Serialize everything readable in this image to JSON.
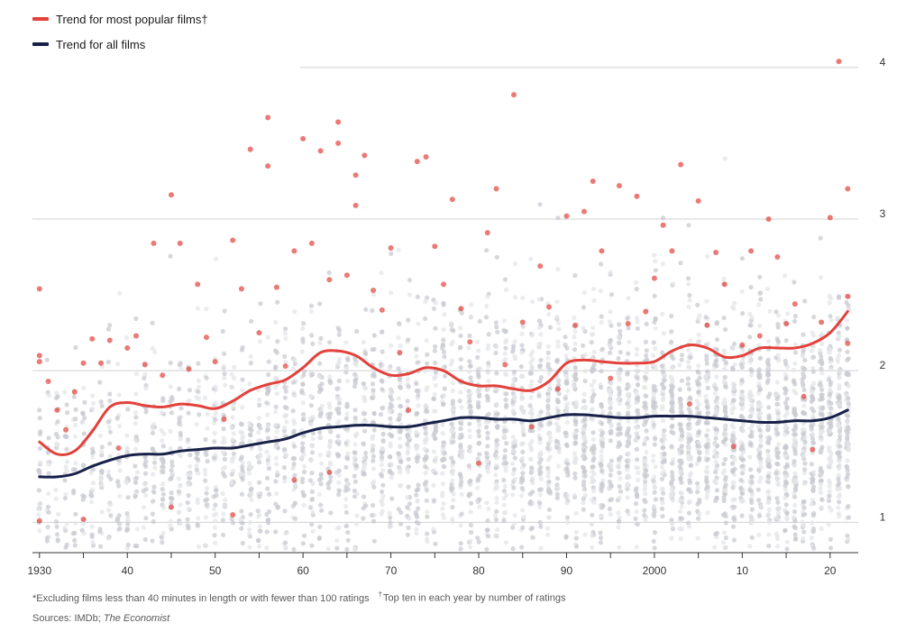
{
  "legend": {
    "popular": {
      "label": "Trend for most popular films†",
      "color": "#e3413b"
    },
    "all": {
      "label": "Trend for all films",
      "color": "#172048"
    }
  },
  "footnotes": {
    "excluding": "*Excluding films less than 40 minutes in length or with fewer than 100 ratings",
    "dagger_mark": "†",
    "top_ten": "Top ten in each year by number of ratings"
  },
  "sources": {
    "prefix": "Sources: IMDb; ",
    "source_italic": "The Economist"
  },
  "chart_data": {
    "type": "scatter",
    "title": "",
    "xlabel": "",
    "ylabel": "",
    "xlim": [
      1929.2,
      2023.2
    ],
    "ylim": [
      0.8,
      4.1
    ],
    "grid": true,
    "y_ticks": [
      1,
      2,
      3,
      4
    ],
    "y_tick_labels": [
      "1",
      "2",
      "3",
      "4"
    ],
    "x_ticks": [
      1930,
      1940,
      1950,
      1960,
      1970,
      1980,
      1990,
      2000,
      2010,
      2020
    ],
    "x_tick_labels": [
      "1930",
      "40",
      "50",
      "60",
      "70",
      "80",
      "90",
      "2000",
      "10",
      "20"
    ],
    "series": [
      {
        "name": "Trend for most popular films†",
        "color": "#e3413b",
        "x": [
          1930,
          1932,
          1934,
          1936,
          1938,
          1940,
          1942,
          1944,
          1946,
          1948,
          1950,
          1952,
          1954,
          1956,
          1958,
          1960,
          1962,
          1964,
          1966,
          1968,
          1970,
          1972,
          1974,
          1976,
          1978,
          1980,
          1982,
          1984,
          1986,
          1988,
          1990,
          1992,
          1994,
          1996,
          1998,
          2000,
          2002,
          2004,
          2006,
          2008,
          2010,
          2012,
          2014,
          2016,
          2018,
          2020,
          2022
        ],
        "y": [
          1.53,
          1.45,
          1.47,
          1.6,
          1.76,
          1.79,
          1.77,
          1.76,
          1.78,
          1.77,
          1.75,
          1.8,
          1.87,
          1.91,
          1.94,
          2.02,
          2.12,
          2.13,
          2.1,
          2.02,
          1.97,
          1.98,
          2.02,
          2.0,
          1.93,
          1.9,
          1.9,
          1.88,
          1.87,
          1.93,
          2.05,
          2.07,
          2.06,
          2.05,
          2.05,
          2.06,
          2.13,
          2.17,
          2.15,
          2.09,
          2.1,
          2.15,
          2.15,
          2.15,
          2.18,
          2.25,
          2.39
        ]
      },
      {
        "name": "Trend for all films",
        "color": "#172048",
        "x": [
          1930,
          1932,
          1934,
          1936,
          1938,
          1940,
          1942,
          1944,
          1946,
          1948,
          1950,
          1952,
          1954,
          1956,
          1958,
          1960,
          1962,
          1964,
          1966,
          1968,
          1970,
          1972,
          1974,
          1976,
          1978,
          1980,
          1982,
          1984,
          1986,
          1988,
          1990,
          1992,
          1994,
          1996,
          1998,
          2000,
          2002,
          2004,
          2006,
          2008,
          2010,
          2012,
          2014,
          2016,
          2018,
          2020,
          2022
        ],
        "y": [
          1.3,
          1.3,
          1.32,
          1.37,
          1.41,
          1.44,
          1.45,
          1.45,
          1.47,
          1.48,
          1.49,
          1.49,
          1.51,
          1.53,
          1.55,
          1.59,
          1.62,
          1.63,
          1.64,
          1.64,
          1.63,
          1.63,
          1.65,
          1.67,
          1.69,
          1.69,
          1.68,
          1.68,
          1.67,
          1.69,
          1.71,
          1.71,
          1.7,
          1.69,
          1.69,
          1.7,
          1.7,
          1.7,
          1.69,
          1.68,
          1.67,
          1.66,
          1.66,
          1.67,
          1.67,
          1.69,
          1.74
        ]
      }
    ],
    "popular_points": [
      [
        1930,
        2.54
      ],
      [
        1930,
        2.1
      ],
      [
        1930,
        2.06
      ],
      [
        1930,
        1.01
      ],
      [
        1931,
        1.93
      ],
      [
        1932,
        1.74
      ],
      [
        1933,
        1.61
      ],
      [
        1934,
        1.86
      ],
      [
        1935,
        2.05
      ],
      [
        1935,
        1.02
      ],
      [
        1936,
        2.21
      ],
      [
        1937,
        2.05
      ],
      [
        1938,
        2.2
      ],
      [
        1939,
        1.49
      ],
      [
        1940,
        2.15
      ],
      [
        1941,
        2.23
      ],
      [
        1942,
        2.04
      ],
      [
        1943,
        2.84
      ],
      [
        1944,
        1.97
      ],
      [
        1945,
        3.16
      ],
      [
        1945,
        1.1
      ],
      [
        1946,
        2.84
      ],
      [
        1947,
        2.01
      ],
      [
        1948,
        2.57
      ],
      [
        1949,
        2.22
      ],
      [
        1950,
        2.06
      ],
      [
        1951,
        1.68
      ],
      [
        1952,
        2.86
      ],
      [
        1952,
        1.05
      ],
      [
        1953,
        2.54
      ],
      [
        1954,
        3.46
      ],
      [
        1955,
        2.25
      ],
      [
        1956,
        3.67
      ],
      [
        1956,
        3.35
      ],
      [
        1957,
        2.55
      ],
      [
        1958,
        2.03
      ],
      [
        1959,
        2.79
      ],
      [
        1959,
        1.28
      ],
      [
        1960,
        3.53
      ],
      [
        1961,
        2.84
      ],
      [
        1962,
        3.45
      ],
      [
        1963,
        2.6
      ],
      [
        1963,
        1.33
      ],
      [
        1964,
        3.64
      ],
      [
        1964,
        3.5
      ],
      [
        1965,
        2.63
      ],
      [
        1966,
        3.29
      ],
      [
        1966,
        3.09
      ],
      [
        1967,
        3.42
      ],
      [
        1968,
        2.53
      ],
      [
        1969,
        2.4
      ],
      [
        1970,
        2.81
      ],
      [
        1971,
        2.12
      ],
      [
        1972,
        1.74
      ],
      [
        1973,
        3.38
      ],
      [
        1974,
        3.41
      ],
      [
        1975,
        2.82
      ],
      [
        1976,
        2.57
      ],
      [
        1977,
        3.13
      ],
      [
        1978,
        2.41
      ],
      [
        1979,
        2.19
      ],
      [
        1980,
        1.39
      ],
      [
        1981,
        2.91
      ],
      [
        1982,
        3.2
      ],
      [
        1983,
        2.04
      ],
      [
        1984,
        3.82
      ],
      [
        1985,
        2.32
      ],
      [
        1986,
        1.63
      ],
      [
        1987,
        2.69
      ],
      [
        1988,
        2.42
      ],
      [
        1989,
        1.88
      ],
      [
        1990,
        3.02
      ],
      [
        1991,
        2.3
      ],
      [
        1992,
        3.05
      ],
      [
        1993,
        3.25
      ],
      [
        1994,
        2.79
      ],
      [
        1995,
        1.95
      ],
      [
        1996,
        3.22
      ],
      [
        1997,
        2.31
      ],
      [
        1998,
        3.15
      ],
      [
        1999,
        2.39
      ],
      [
        2000,
        2.61
      ],
      [
        2001,
        2.96
      ],
      [
        2002,
        2.79
      ],
      [
        2003,
        3.36
      ],
      [
        2004,
        1.78
      ],
      [
        2005,
        3.12
      ],
      [
        2006,
        2.3
      ],
      [
        2007,
        2.78
      ],
      [
        2008,
        2.57
      ],
      [
        2009,
        1.5
      ],
      [
        2010,
        2.17
      ],
      [
        2011,
        2.79
      ],
      [
        2012,
        2.23
      ],
      [
        2013,
        3.0
      ],
      [
        2014,
        2.75
      ],
      [
        2015,
        2.31
      ],
      [
        2016,
        2.44
      ],
      [
        2017,
        1.83
      ],
      [
        2018,
        1.48
      ],
      [
        2019,
        2.32
      ],
      [
        2020,
        3.01
      ],
      [
        2021,
        4.04
      ],
      [
        2022,
        3.2
      ],
      [
        2022,
        2.49
      ],
      [
        2022,
        2.18
      ]
    ]
  }
}
